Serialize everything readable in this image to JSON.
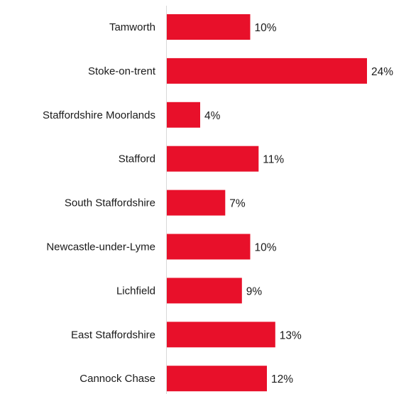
{
  "chart_data": {
    "type": "bar",
    "orientation": "horizontal",
    "categories": [
      "Tamworth",
      "Stoke-on-trent",
      "Staffordshire Moorlands",
      "Stafford",
      "South Staffordshire",
      "Newcastle-under-Lyme",
      "Lichfield",
      "East Staffordshire",
      "Cannock Chase"
    ],
    "values": [
      10,
      24,
      4,
      11,
      7,
      10,
      9,
      13,
      12
    ],
    "value_labels": [
      "10%",
      "24%",
      "4%",
      "11%",
      "7%",
      "10%",
      "9%",
      "13%",
      "12%"
    ],
    "unit": "%",
    "title": "",
    "xlabel": "",
    "ylabel": "",
    "xlim": [
      0,
      24
    ],
    "grid": false,
    "legend": "none",
    "bar_color": "#E8102A"
  }
}
